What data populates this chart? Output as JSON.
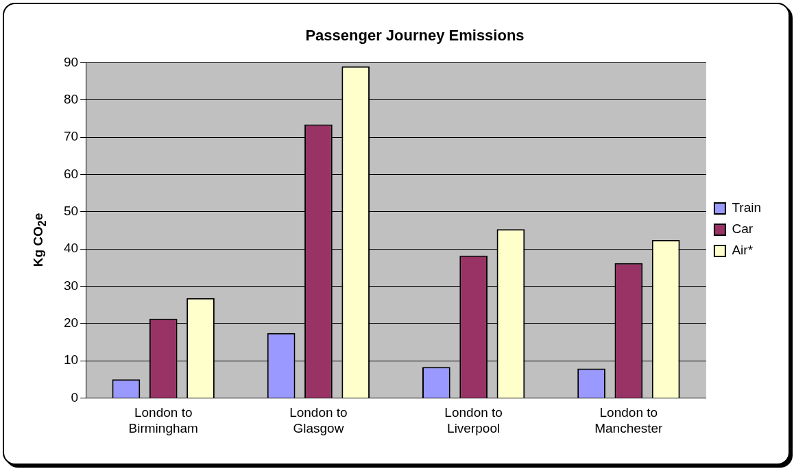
{
  "chart_data": {
    "type": "bar",
    "title": "Passenger Journey Emissions",
    "ylabel": "Kg CO$_{2}$e",
    "categories": [
      "London to Birmingham",
      "London to Glasgow",
      "London to Liverpool",
      "London to Manchester"
    ],
    "series": [
      {
        "name": "Train",
        "color": "#9999ff",
        "values": [
          5,
          17.4,
          8.3,
          7.9
        ]
      },
      {
        "name": "Car",
        "color": "#993366",
        "values": [
          21.3,
          73.4,
          38.2,
          36.2
        ]
      },
      {
        "name": "Air*",
        "color": "#ffffcc",
        "values": [
          26.8,
          89,
          45.3,
          42.4
        ]
      }
    ],
    "ylim": [
      0,
      90
    ],
    "yticks": [
      0,
      10,
      20,
      30,
      40,
      50,
      60,
      70,
      80,
      90
    ],
    "grid": "y",
    "legend": "right"
  }
}
